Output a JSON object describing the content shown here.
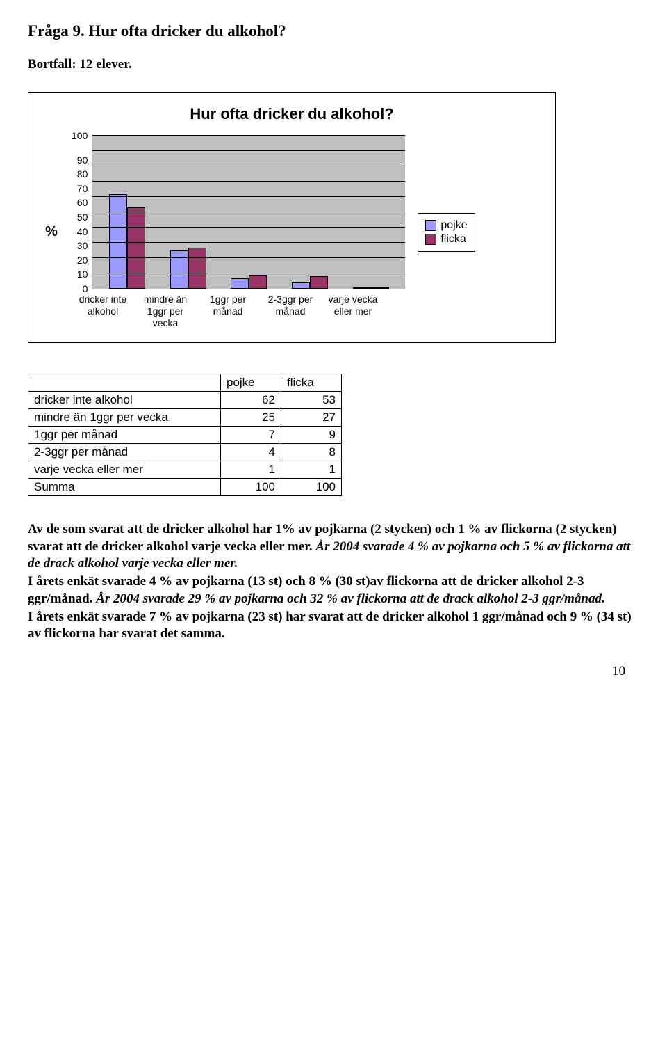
{
  "heading": "Fråga 9. Hur ofta dricker du alkohol?",
  "subhead": "Bortfall: 12 elever.",
  "chart": {
    "title": "Hur ofta dricker du alkohol?",
    "y_label": "%",
    "categories": [
      "dricker inte alkohol",
      "mindre än 1ggr per vecka",
      "1ggr per månad",
      "2-3ggr per månad",
      "varje vecka eller mer"
    ],
    "series": [
      {
        "name": "pojke",
        "color": "#9999ff",
        "values": [
          62,
          25,
          7,
          4,
          1
        ]
      },
      {
        "name": "flicka",
        "color": "#993366",
        "values": [
          53,
          27,
          9,
          8,
          1
        ]
      }
    ],
    "ylim": [
      0,
      100
    ],
    "ytick_step": 10,
    "plot_bg": "#c0c0c0",
    "grid_color": "#000000",
    "bar_border": "#000000"
  },
  "table": {
    "col_headers": [
      "",
      "pojke",
      "flicka"
    ],
    "rows": [
      [
        "dricker inte alkohol",
        62,
        53
      ],
      [
        "mindre än 1ggr per vecka",
        25,
        27
      ],
      [
        "1ggr per månad",
        7,
        9
      ],
      [
        "2-3ggr per månad",
        4,
        8
      ],
      [
        "varje vecka eller mer",
        1,
        1
      ],
      [
        "Summa",
        100,
        100
      ]
    ]
  },
  "paras": {
    "p1a": "Av de som svarat att de dricker alkohol har 1% av pojkarna (2 stycken) och 1 % av flickorna (2 stycken) svarat att de dricker alkohol varje vecka eller mer. ",
    "p1b": "År 2004 svarade 4 % av pojkarna och 5 % av flickorna att de drack alkohol varje vecka eller mer.",
    "p2a": "I årets enkät svarade 4 % av pojkarna (13 st) och 8 % (30 st)av flickorna att de dricker alkohol 2-3 ggr/månad. ",
    "p2b": "År 2004 svarade 29 % av pojkarna och 32 % av flickorna att de drack alkohol 2-3 ggr/månad.",
    "p3": "I årets enkät svarade 7 % av pojkarna (23 st) har svarat att de dricker alkohol 1 ggr/månad och 9 % (34 st) av flickorna har svarat det samma."
  },
  "page_number": "10"
}
